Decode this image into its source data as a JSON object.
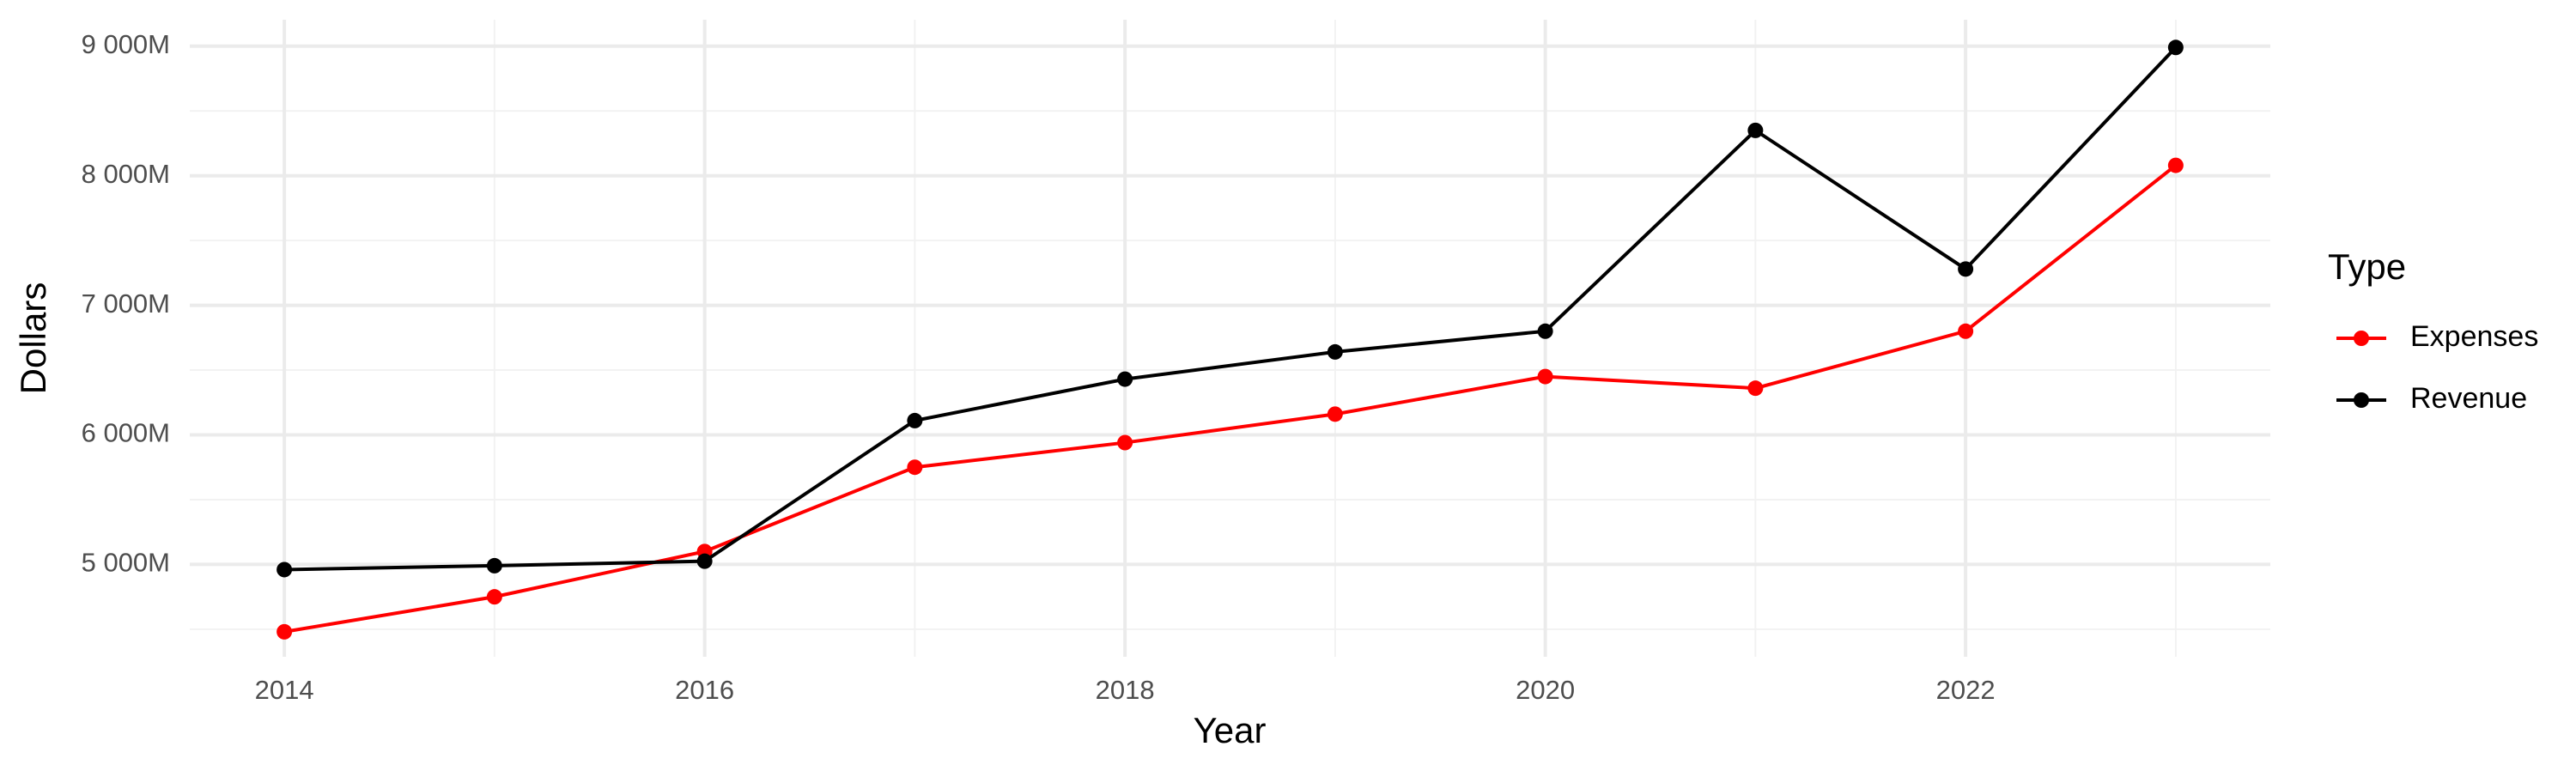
{
  "chart_data": {
    "type": "line",
    "x_label": "Year",
    "y_label": "Dollars",
    "x": [
      2014,
      2015,
      2016,
      2017,
      2018,
      2019,
      2020,
      2021,
      2022,
      2023
    ],
    "series": [
      {
        "name": "Expenses",
        "color": "#ff0000",
        "values": [
          4480,
          4750,
          5100,
          5750,
          5940,
          6160,
          6450,
          6360,
          6800,
          8080
        ]
      },
      {
        "name": "Revenue",
        "color": "#000000",
        "values": [
          4960,
          4990,
          5025,
          6110,
          6430,
          6640,
          6800,
          8350,
          7280,
          8990
        ]
      }
    ],
    "xlim": [
      2013.55,
      2023.45
    ],
    "xticks": [
      2014,
      2016,
      2018,
      2020,
      2022
    ],
    "ylim": [
      4287,
      9204
    ],
    "yticks": [
      {
        "value": 5000,
        "label": "5 000M"
      },
      {
        "value": 6000,
        "label": "6 000M"
      },
      {
        "value": 7000,
        "label": "7 000M"
      },
      {
        "value": 8000,
        "label": "8 000M"
      },
      {
        "value": 9000,
        "label": "9 000M"
      }
    ],
    "grid": true,
    "minor_grid": true,
    "legend_title": "Type",
    "legend_position": "right"
  }
}
